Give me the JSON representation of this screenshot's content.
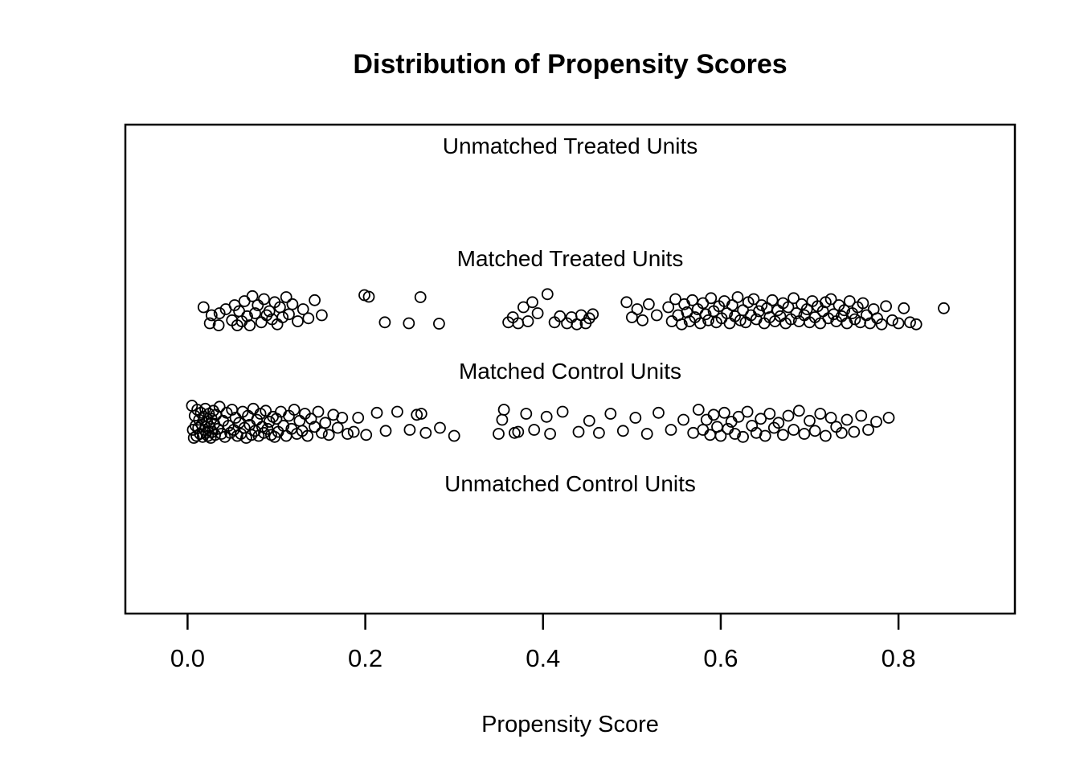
{
  "chart_data": {
    "type": "scatter",
    "title": "Distribution of Propensity Scores",
    "xlabel": "Propensity Score",
    "x_ticks": [
      {
        "value": 0.0,
        "label": "0.0"
      },
      {
        "value": 0.2,
        "label": "0.2"
      },
      {
        "value": 0.4,
        "label": "0.4"
      },
      {
        "value": 0.6,
        "label": "0.6"
      },
      {
        "value": 0.8,
        "label": "0.8"
      }
    ],
    "xlim": [
      -0.07,
      0.931
    ],
    "grid": false,
    "marker": {
      "shape": "open-circle",
      "color": "#000000",
      "fill": "none"
    },
    "axis_color": "#000000",
    "background_color": "#ffffff",
    "groups": [
      {
        "label": "Unmatched Treated Units",
        "points": []
      },
      {
        "label": "Matched Treated Units",
        "points": [
          [
            0.018,
            -0.2
          ],
          [
            0.025,
            0.6
          ],
          [
            0.027,
            0.2
          ],
          [
            0.035,
            0.7
          ],
          [
            0.036,
            0.1
          ],
          [
            0.043,
            -0.1
          ],
          [
            0.05,
            0.45
          ],
          [
            0.053,
            -0.3
          ],
          [
            0.056,
            0.7
          ],
          [
            0.058,
            0.0
          ],
          [
            0.061,
            0.5
          ],
          [
            0.064,
            -0.5
          ],
          [
            0.067,
            0.25
          ],
          [
            0.07,
            0.7
          ],
          [
            0.073,
            -0.75
          ],
          [
            0.076,
            0.1
          ],
          [
            0.079,
            -0.3
          ],
          [
            0.083,
            0.55
          ],
          [
            0.086,
            -0.6
          ],
          [
            0.089,
            0.2
          ],
          [
            0.092,
            0.0
          ],
          [
            0.095,
            0.4
          ],
          [
            0.098,
            -0.45
          ],
          [
            0.101,
            0.65
          ],
          [
            0.104,
            -0.2
          ],
          [
            0.107,
            0.3
          ],
          [
            0.111,
            -0.7
          ],
          [
            0.114,
            0.15
          ],
          [
            0.118,
            -0.35
          ],
          [
            0.124,
            0.5
          ],
          [
            0.13,
            -0.1
          ],
          [
            0.136,
            0.35
          ],
          [
            0.143,
            -0.55
          ],
          [
            0.151,
            0.2
          ],
          [
            0.199,
            -0.8
          ],
          [
            0.204,
            -0.72
          ],
          [
            0.222,
            0.55
          ],
          [
            0.249,
            0.6
          ],
          [
            0.262,
            -0.7
          ],
          [
            0.283,
            0.62
          ],
          [
            0.361,
            0.55
          ],
          [
            0.366,
            0.3
          ],
          [
            0.372,
            0.6
          ],
          [
            0.378,
            -0.2
          ],
          [
            0.383,
            0.5
          ],
          [
            0.388,
            -0.45
          ],
          [
            0.394,
            0.1
          ],
          [
            0.405,
            -0.85
          ],
          [
            0.413,
            0.55
          ],
          [
            0.419,
            0.25
          ],
          [
            0.427,
            0.6
          ],
          [
            0.432,
            0.3
          ],
          [
            0.438,
            0.65
          ],
          [
            0.443,
            0.2
          ],
          [
            0.448,
            0.6
          ],
          [
            0.452,
            0.35
          ],
          [
            0.456,
            0.15
          ],
          [
            0.494,
            -0.45
          ],
          [
            0.5,
            0.3
          ],
          [
            0.506,
            -0.1
          ],
          [
            0.512,
            0.45
          ],
          [
            0.519,
            -0.35
          ],
          [
            0.528,
            0.2
          ],
          [
            0.541,
            -0.2
          ],
          [
            0.545,
            0.5
          ],
          [
            0.549,
            -0.6
          ],
          [
            0.552,
            0.2
          ],
          [
            0.556,
            0.65
          ],
          [
            0.559,
            -0.35
          ],
          [
            0.562,
            0.05
          ],
          [
            0.565,
            0.5
          ],
          [
            0.568,
            -0.55
          ],
          [
            0.571,
            0.3
          ],
          [
            0.574,
            -0.1
          ],
          [
            0.577,
            0.6
          ],
          [
            0.58,
            -0.4
          ],
          [
            0.583,
            0.15
          ],
          [
            0.586,
            0.45
          ],
          [
            0.589,
            -0.65
          ],
          [
            0.592,
            0.0
          ],
          [
            0.595,
            0.55
          ],
          [
            0.598,
            -0.25
          ],
          [
            0.601,
            0.35
          ],
          [
            0.604,
            -0.5
          ],
          [
            0.607,
            0.1
          ],
          [
            0.61,
            0.6
          ],
          [
            0.613,
            -0.3
          ],
          [
            0.616,
            0.25
          ],
          [
            0.619,
            -0.7
          ],
          [
            0.622,
            0.45
          ],
          [
            0.625,
            -0.05
          ],
          [
            0.628,
            0.55
          ],
          [
            0.631,
            -0.45
          ],
          [
            0.634,
            0.2
          ],
          [
            0.637,
            -0.6
          ],
          [
            0.64,
            0.4
          ],
          [
            0.643,
            0.0
          ],
          [
            0.646,
            -0.3
          ],
          [
            0.649,
            0.6
          ],
          [
            0.652,
            -0.15
          ],
          [
            0.655,
            0.3
          ],
          [
            0.658,
            -0.55
          ],
          [
            0.661,
            0.5
          ],
          [
            0.664,
            -0.05
          ],
          [
            0.667,
            0.25
          ],
          [
            0.67,
            -0.4
          ],
          [
            0.673,
            0.6
          ],
          [
            0.676,
            -0.2
          ],
          [
            0.679,
            0.4
          ],
          [
            0.682,
            -0.65
          ],
          [
            0.685,
            0.1
          ],
          [
            0.688,
            0.5
          ],
          [
            0.691,
            -0.35
          ],
          [
            0.694,
            0.2
          ],
          [
            0.697,
            -0.1
          ],
          [
            0.7,
            0.55
          ],
          [
            0.703,
            -0.5
          ],
          [
            0.706,
            0.3
          ],
          [
            0.709,
            -0.25
          ],
          [
            0.712,
            0.6
          ],
          [
            0.715,
            0.0
          ],
          [
            0.718,
            -0.45
          ],
          [
            0.721,
            0.35
          ],
          [
            0.724,
            -0.6
          ],
          [
            0.727,
            0.15
          ],
          [
            0.73,
            0.5
          ],
          [
            0.733,
            -0.3
          ],
          [
            0.736,
            0.25
          ],
          [
            0.739,
            -0.05
          ],
          [
            0.742,
            0.6
          ],
          [
            0.745,
            -0.5
          ],
          [
            0.748,
            0.1
          ],
          [
            0.751,
            0.4
          ],
          [
            0.754,
            -0.2
          ],
          [
            0.757,
            0.55
          ],
          [
            0.76,
            -0.4
          ],
          [
            0.764,
            0.2
          ],
          [
            0.768,
            0.6
          ],
          [
            0.772,
            -0.1
          ],
          [
            0.776,
            0.35
          ],
          [
            0.781,
            0.65
          ],
          [
            0.786,
            -0.25
          ],
          [
            0.793,
            0.45
          ],
          [
            0.8,
            0.6
          ],
          [
            0.806,
            -0.15
          ],
          [
            0.813,
            0.55
          ],
          [
            0.82,
            0.65
          ],
          [
            0.851,
            -0.15
          ]
        ]
      },
      {
        "label": "Matched Control Units",
        "points": [
          [
            0.005,
            -0.9
          ],
          [
            0.006,
            0.3
          ],
          [
            0.007,
            0.7
          ],
          [
            0.008,
            -0.4
          ],
          [
            0.009,
            0.1
          ],
          [
            0.01,
            0.6
          ],
          [
            0.011,
            -0.7
          ],
          [
            0.012,
            0.2
          ],
          [
            0.013,
            -0.2
          ],
          [
            0.014,
            0.5
          ],
          [
            0.015,
            -0.55
          ],
          [
            0.016,
            0.05
          ],
          [
            0.017,
            0.65
          ],
          [
            0.018,
            -0.35
          ],
          [
            0.019,
            0.3
          ],
          [
            0.02,
            -0.75
          ],
          [
            0.021,
            0.45
          ],
          [
            0.022,
            -0.1
          ],
          [
            0.023,
            0.6
          ],
          [
            0.024,
            -0.5
          ],
          [
            0.025,
            0.15
          ],
          [
            0.026,
            0.7
          ],
          [
            0.027,
            -0.25
          ],
          [
            0.028,
            0.4
          ],
          [
            0.029,
            -0.65
          ],
          [
            0.03,
            0.0
          ],
          [
            0.031,
            0.55
          ],
          [
            0.032,
            -0.45
          ],
          [
            0.034,
            0.25
          ],
          [
            0.036,
            -0.85
          ],
          [
            0.038,
            0.5
          ],
          [
            0.04,
            -0.15
          ],
          [
            0.042,
            0.65
          ],
          [
            0.044,
            -0.55
          ],
          [
            0.046,
            0.1
          ],
          [
            0.048,
            0.45
          ],
          [
            0.05,
            -0.7
          ],
          [
            0.052,
            0.3
          ],
          [
            0.054,
            -0.3
          ],
          [
            0.056,
            0.6
          ],
          [
            0.058,
            -0.05
          ],
          [
            0.06,
            0.5
          ],
          [
            0.062,
            -0.6
          ],
          [
            0.064,
            0.2
          ],
          [
            0.066,
            0.7
          ],
          [
            0.068,
            -0.4
          ],
          [
            0.07,
            0.05
          ],
          [
            0.072,
            0.55
          ],
          [
            0.074,
            -0.75
          ],
          [
            0.076,
            0.35
          ],
          [
            0.078,
            -0.2
          ],
          [
            0.08,
            0.6
          ],
          [
            0.082,
            -0.5
          ],
          [
            0.084,
            0.15
          ],
          [
            0.086,
            0.45
          ],
          [
            0.088,
            -0.65
          ],
          [
            0.09,
            0.25
          ],
          [
            0.092,
            -0.1
          ],
          [
            0.094,
            0.55
          ],
          [
            0.096,
            -0.35
          ],
          [
            0.098,
            0.65
          ],
          [
            0.1,
            -0.25
          ],
          [
            0.102,
            0.4
          ],
          [
            0.105,
            -0.6
          ],
          [
            0.108,
            0.1
          ],
          [
            0.111,
            0.6
          ],
          [
            0.114,
            -0.4
          ],
          [
            0.117,
            0.25
          ],
          [
            0.12,
            -0.7
          ],
          [
            0.123,
            0.5
          ],
          [
            0.126,
            -0.15
          ],
          [
            0.129,
            0.35
          ],
          [
            0.132,
            -0.5
          ],
          [
            0.135,
            0.6
          ],
          [
            0.139,
            -0.25
          ],
          [
            0.143,
            0.15
          ],
          [
            0.147,
            -0.6
          ],
          [
            0.151,
            0.45
          ],
          [
            0.155,
            -0.05
          ],
          [
            0.159,
            0.55
          ],
          [
            0.164,
            -0.45
          ],
          [
            0.169,
            0.2
          ],
          [
            0.174,
            -0.3
          ],
          [
            0.18,
            0.5
          ],
          [
            0.187,
            0.4
          ],
          [
            0.192,
            -0.3
          ],
          [
            0.201,
            0.55
          ],
          [
            0.213,
            -0.55
          ],
          [
            0.223,
            0.35
          ],
          [
            0.236,
            -0.6
          ],
          [
            0.25,
            0.3
          ],
          [
            0.258,
            -0.45
          ],
          [
            0.263,
            -0.5
          ],
          [
            0.268,
            0.45
          ],
          [
            0.284,
            0.2
          ],
          [
            0.3,
            0.6
          ],
          [
            0.35,
            0.5
          ],
          [
            0.354,
            -0.2
          ],
          [
            0.356,
            -0.7
          ],
          [
            0.368,
            0.45
          ],
          [
            0.372,
            0.4
          ],
          [
            0.381,
            -0.5
          ],
          [
            0.39,
            0.3
          ],
          [
            0.404,
            -0.35
          ],
          [
            0.408,
            0.5
          ],
          [
            0.422,
            -0.6
          ],
          [
            0.44,
            0.4
          ],
          [
            0.452,
            -0.15
          ],
          [
            0.463,
            0.45
          ],
          [
            0.476,
            -0.5
          ],
          [
            0.49,
            0.35
          ],
          [
            0.504,
            -0.3
          ],
          [
            0.517,
            0.5
          ],
          [
            0.53,
            -0.55
          ],
          [
            0.544,
            0.3
          ],
          [
            0.558,
            -0.2
          ],
          [
            0.569,
            0.45
          ],
          [
            0.575,
            -0.7
          ],
          [
            0.58,
            0.3
          ],
          [
            0.584,
            -0.2
          ],
          [
            0.588,
            0.55
          ],
          [
            0.592,
            -0.45
          ],
          [
            0.596,
            0.15
          ],
          [
            0.6,
            0.6
          ],
          [
            0.604,
            -0.55
          ],
          [
            0.608,
            0.25
          ],
          [
            0.612,
            -0.1
          ],
          [
            0.616,
            0.5
          ],
          [
            0.62,
            -0.35
          ],
          [
            0.625,
            0.65
          ],
          [
            0.63,
            -0.6
          ],
          [
            0.635,
            0.1
          ],
          [
            0.64,
            0.45
          ],
          [
            0.645,
            -0.25
          ],
          [
            0.65,
            0.6
          ],
          [
            0.655,
            -0.5
          ],
          [
            0.66,
            0.2
          ],
          [
            0.665,
            -0.05
          ],
          [
            0.67,
            0.55
          ],
          [
            0.676,
            -0.4
          ],
          [
            0.682,
            0.3
          ],
          [
            0.688,
            -0.65
          ],
          [
            0.694,
            0.5
          ],
          [
            0.7,
            -0.15
          ],
          [
            0.706,
            0.35
          ],
          [
            0.712,
            -0.5
          ],
          [
            0.718,
            0.6
          ],
          [
            0.724,
            -0.3
          ],
          [
            0.73,
            0.15
          ],
          [
            0.736,
            0.45
          ],
          [
            0.742,
            -0.2
          ],
          [
            0.75,
            0.4
          ],
          [
            0.758,
            -0.4
          ],
          [
            0.766,
            0.3
          ],
          [
            0.775,
            -0.1
          ],
          [
            0.789,
            -0.3
          ]
        ]
      },
      {
        "label": "Unmatched Control Units",
        "points": []
      }
    ]
  }
}
